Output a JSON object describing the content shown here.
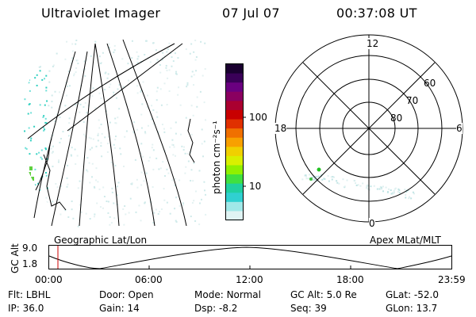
{
  "header": {
    "title": "Ultraviolet Imager",
    "date": "07 Jul 07",
    "time": "00:37:08 UT"
  },
  "colorbar": {
    "label": "photon cm⁻²s⁻¹",
    "ticks": [
      "100",
      "10"
    ],
    "colors": [
      "#1a0030",
      "#3a0058",
      "#6a0080",
      "#8a0060",
      "#aa0030",
      "#c80000",
      "#e03000",
      "#f07000",
      "#f8a000",
      "#f0d000",
      "#d8f000",
      "#90f000",
      "#40e040",
      "#20d0a0",
      "#30d0d0",
      "#a0e8e8",
      "#e0f4f4"
    ]
  },
  "left_map": {
    "label": "Geographic Lat/Lon"
  },
  "polar_plot": {
    "label": "Apex MLat/MLT",
    "mlt_labels": {
      "top": "12",
      "left": "18",
      "right": "6",
      "bottom": "0"
    },
    "lat_labels": [
      "60",
      "70",
      "80"
    ]
  },
  "timeline": {
    "axis_title": "GC Alt",
    "y_ticks": [
      "9.0",
      "1.8"
    ],
    "x_ticks": [
      "00:00",
      "06:00",
      "12:00",
      "18:00",
      "23:59"
    ]
  },
  "footer": {
    "row1": [
      {
        "label": "Flt:",
        "value": "LBHL"
      },
      {
        "label": "Door:",
        "value": "Open"
      },
      {
        "label": "Mode:",
        "value": "Normal"
      },
      {
        "label": "GC Alt:",
        "value": "5.0 Re"
      },
      {
        "label": "GLat:",
        "value": "-52.0"
      }
    ],
    "row2": [
      {
        "label": "IP:",
        "value": "36.0"
      },
      {
        "label": "Gain:",
        "value": "14"
      },
      {
        "label": "Dsp:",
        "value": "-8.2"
      },
      {
        "label": "Seq:",
        "value": "39"
      },
      {
        "label": "GLon:",
        "value": "13.7"
      }
    ]
  }
}
